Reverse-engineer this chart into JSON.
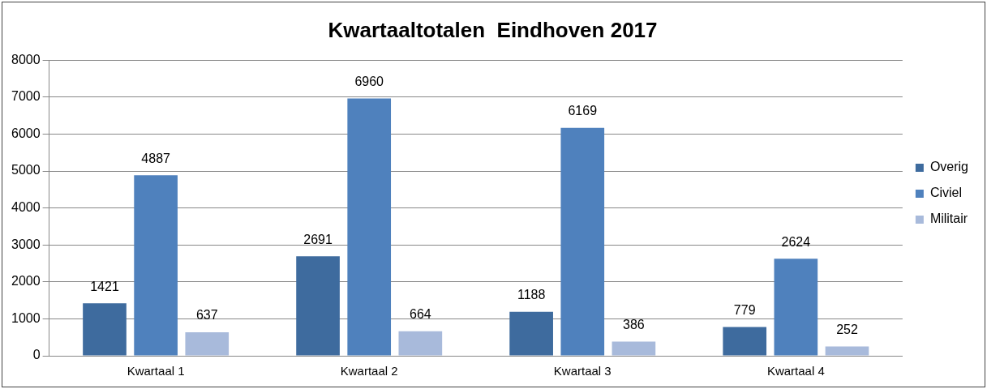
{
  "chart_data": {
    "type": "bar",
    "title": "Kwartaaltotalen  Eindhoven 2017",
    "categories": [
      "Kwartaal 1",
      "Kwartaal 2",
      "Kwartaal 3",
      "Kwartaal 4"
    ],
    "series": [
      {
        "name": "Overig",
        "color": "#3e6b9e",
        "values": [
          1421,
          2691,
          1188,
          779
        ]
      },
      {
        "name": "Civiel",
        "color": "#4f81bd",
        "values": [
          4887,
          6960,
          6169,
          2624
        ]
      },
      {
        "name": "Militair",
        "color": "#a8badb",
        "values": [
          637,
          664,
          386,
          252
        ]
      }
    ],
    "ylim": [
      0,
      8000
    ],
    "yticks": [
      0,
      1000,
      2000,
      3000,
      4000,
      5000,
      6000,
      7000,
      8000
    ],
    "grid": "y",
    "legend": "right",
    "data_labels": true
  }
}
